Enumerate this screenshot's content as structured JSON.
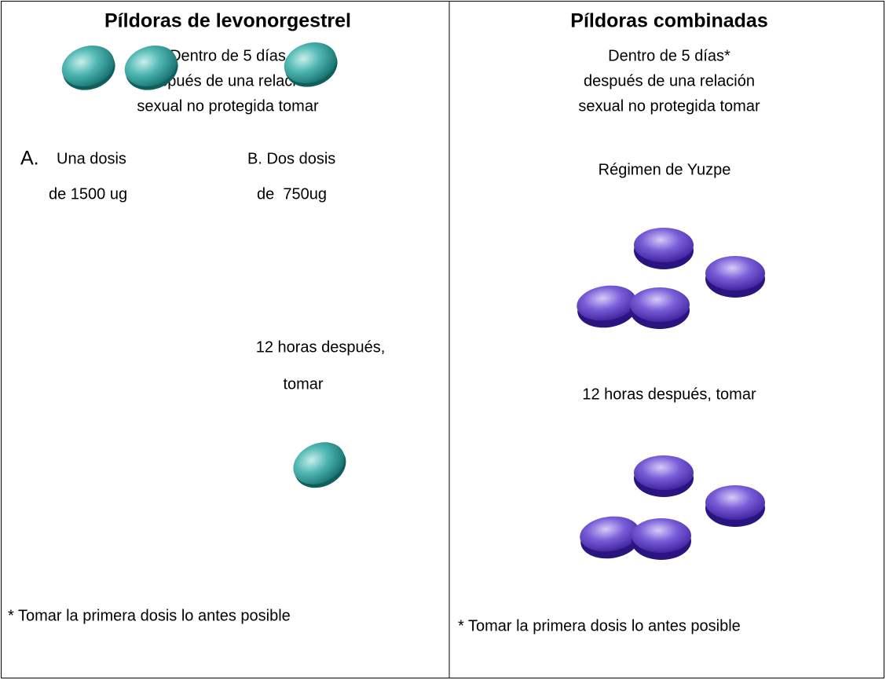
{
  "left": {
    "title": "Píldoras de levonorgestrel",
    "intro": [
      "Dentro de 5 días",
      "después de una relación",
      "sexual no protegida tomar"
    ],
    "option_a": {
      "letter": "A.",
      "line1": "Una dosis",
      "line2": "de 1500 ug"
    },
    "option_b": {
      "line1": "B. Dos dosis",
      "line2": "de  750ug"
    },
    "later": [
      "12 horas después,",
      "tomar"
    ],
    "footnote": "* Tomar la primera dosis lo antes posible"
  },
  "right": {
    "title": "Píldoras combinadas",
    "intro": [
      "Dentro de 5 días*",
      "después de una relación",
      "sexual no protegida tomar"
    ],
    "regimen": "Régimen de Yuzpe",
    "later": "12 horas después, tomar",
    "footnote": "* Tomar la primera dosis lo antes posible"
  }
}
